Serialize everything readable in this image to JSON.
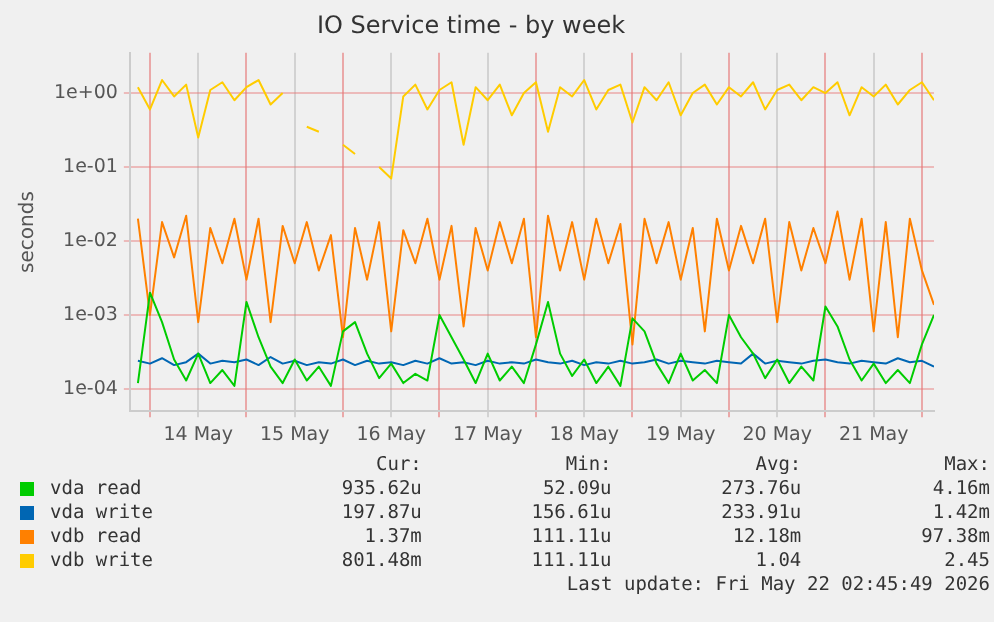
{
  "chart_data": {
    "type": "line",
    "title": "IO Service time - by week",
    "ylabel": "seconds",
    "log": "y",
    "grid": true,
    "legend": "bottom",
    "marker": "none",
    "line_style": "solid",
    "xlim": [
      "2026-05-13T19:00",
      "2026-05-22T03:00"
    ],
    "xticks": [
      {
        "value": "2026-05-14T00:00",
        "label": null
      },
      {
        "value": "2026-05-14T12:00",
        "label": "14 May"
      },
      {
        "value": "2026-05-15T00:00",
        "label": null
      },
      {
        "value": "2026-05-15T12:00",
        "label": "15 May"
      },
      {
        "value": "2026-05-16T00:00",
        "label": null
      },
      {
        "value": "2026-05-16T12:00",
        "label": "16 May"
      },
      {
        "value": "2026-05-17T00:00",
        "label": null
      },
      {
        "value": "2026-05-17T12:00",
        "label": "17 May"
      },
      {
        "value": "2026-05-18T00:00",
        "label": null
      },
      {
        "value": "2026-05-18T12:00",
        "label": "18 May"
      },
      {
        "value": "2026-05-19T00:00",
        "label": null
      },
      {
        "value": "2026-05-19T12:00",
        "label": "19 May"
      },
      {
        "value": "2026-05-20T00:00",
        "label": null
      },
      {
        "value": "2026-05-20T12:00",
        "label": "20 May"
      },
      {
        "value": "2026-05-21T00:00",
        "label": null
      },
      {
        "value": "2026-05-21T12:00",
        "label": "21 May"
      },
      {
        "value": "2026-05-22T00:00",
        "label": null
      }
    ],
    "ylim": [
      5e-05,
      3.5
    ],
    "yticks": [
      {
        "value": 0.0001,
        "label": "1e-04"
      },
      {
        "value": 0.001,
        "label": "1e-03"
      },
      {
        "value": 0.01,
        "label": "1e-02"
      },
      {
        "value": 0.1,
        "label": "1e-01"
      },
      {
        "value": 1,
        "label": "1e+00"
      }
    ],
    "x": [
      "2026-05-13T21:00",
      "2026-05-14T00:00",
      "2026-05-14T03:00",
      "2026-05-14T06:00",
      "2026-05-14T09:00",
      "2026-05-14T12:00",
      "2026-05-14T15:00",
      "2026-05-14T18:00",
      "2026-05-14T21:00",
      "2026-05-15T00:00",
      "2026-05-15T03:00",
      "2026-05-15T06:00",
      "2026-05-15T09:00",
      "2026-05-15T12:00",
      "2026-05-15T15:00",
      "2026-05-15T18:00",
      "2026-05-15T21:00",
      "2026-05-16T00:00",
      "2026-05-16T03:00",
      "2026-05-16T06:00",
      "2026-05-16T09:00",
      "2026-05-16T12:00",
      "2026-05-16T15:00",
      "2026-05-16T18:00",
      "2026-05-16T21:00",
      "2026-05-17T00:00",
      "2026-05-17T03:00",
      "2026-05-17T06:00",
      "2026-05-17T09:00",
      "2026-05-17T12:00",
      "2026-05-17T15:00",
      "2026-05-17T18:00",
      "2026-05-17T21:00",
      "2026-05-18T00:00",
      "2026-05-18T03:00",
      "2026-05-18T06:00",
      "2026-05-18T09:00",
      "2026-05-18T12:00",
      "2026-05-18T15:00",
      "2026-05-18T18:00",
      "2026-05-18T21:00",
      "2026-05-19T00:00",
      "2026-05-19T03:00",
      "2026-05-19T06:00",
      "2026-05-19T09:00",
      "2026-05-19T12:00",
      "2026-05-19T15:00",
      "2026-05-19T18:00",
      "2026-05-19T21:00",
      "2026-05-20T00:00",
      "2026-05-20T03:00",
      "2026-05-20T06:00",
      "2026-05-20T09:00",
      "2026-05-20T12:00",
      "2026-05-20T15:00",
      "2026-05-20T18:00",
      "2026-05-20T21:00",
      "2026-05-21T00:00",
      "2026-05-21T03:00",
      "2026-05-21T06:00",
      "2026-05-21T09:00",
      "2026-05-21T12:00",
      "2026-05-21T15:00",
      "2026-05-21T18:00",
      "2026-05-21T21:00",
      "2026-05-22T00:00",
      "2026-05-22T03:00"
    ],
    "series": [
      {
        "name": "vda read",
        "color": "#00cc00",
        "values": [
          0.00012,
          0.002,
          0.0008,
          0.00025,
          0.00013,
          0.0003,
          0.00012,
          0.00018,
          0.00011,
          0.0015,
          0.0005,
          0.0002,
          0.00012,
          0.00025,
          0.00013,
          0.0002,
          0.00011,
          0.0006,
          0.0008,
          0.0003,
          0.00014,
          0.00022,
          0.00012,
          0.00016,
          0.00013,
          0.001,
          0.0005,
          0.00025,
          0.00012,
          0.0003,
          0.00013,
          0.0002,
          0.00012,
          0.0004,
          0.0015,
          0.0003,
          0.00015,
          0.00025,
          0.00012,
          0.0002,
          0.00011,
          0.0009,
          0.0006,
          0.00022,
          0.00012,
          0.0003,
          0.00013,
          0.00018,
          0.00012,
          0.001,
          0.0005,
          0.0003,
          0.00014,
          0.00025,
          0.00012,
          0.0002,
          0.00013,
          0.0013,
          0.0007,
          0.00025,
          0.00013,
          0.00022,
          0.00012,
          0.00018,
          0.00012,
          0.0004,
          0.001
        ]
      },
      {
        "name": "vda write",
        "color": "#0066b3",
        "values": [
          0.00024,
          0.00022,
          0.00026,
          0.00021,
          0.00023,
          0.0003,
          0.00022,
          0.00024,
          0.00023,
          0.00025,
          0.00021,
          0.00027,
          0.00022,
          0.00024,
          0.00021,
          0.00023,
          0.00022,
          0.00025,
          0.00021,
          0.00024,
          0.00022,
          0.00023,
          0.00021,
          0.00024,
          0.00022,
          0.00026,
          0.00022,
          0.00023,
          0.00021,
          0.00024,
          0.00022,
          0.00023,
          0.00022,
          0.00025,
          0.00023,
          0.00022,
          0.00024,
          0.00021,
          0.00023,
          0.00022,
          0.00024,
          0.00022,
          0.00023,
          0.00025,
          0.00022,
          0.00024,
          0.00023,
          0.00022,
          0.00024,
          0.00023,
          0.00022,
          0.0003,
          0.00022,
          0.00024,
          0.00023,
          0.00022,
          0.00024,
          0.00025,
          0.00023,
          0.00022,
          0.00024,
          0.00023,
          0.00022,
          0.00026,
          0.00023,
          0.00024,
          0.0002
        ]
      },
      {
        "name": "vdb read",
        "color": "#ff8000",
        "values": [
          0.02,
          0.001,
          0.018,
          0.006,
          0.022,
          0.0008,
          0.015,
          0.005,
          0.02,
          0.003,
          0.02,
          0.0008,
          0.016,
          0.005,
          0.018,
          0.004,
          0.012,
          0.0005,
          0.015,
          0.003,
          0.018,
          0.0006,
          0.014,
          0.005,
          0.02,
          0.003,
          0.016,
          0.0007,
          0.015,
          0.004,
          0.018,
          0.005,
          0.02,
          0.0005,
          0.022,
          0.004,
          0.018,
          0.003,
          0.02,
          0.005,
          0.017,
          0.0004,
          0.02,
          0.005,
          0.018,
          0.003,
          0.015,
          0.0006,
          0.02,
          0.004,
          0.016,
          0.005,
          0.02,
          0.0008,
          0.018,
          0.004,
          0.015,
          0.005,
          0.025,
          0.003,
          0.02,
          0.0006,
          0.018,
          0.0005,
          0.02,
          0.004,
          0.00137
        ]
      },
      {
        "name": "vdb write",
        "color": "#ffcc00",
        "values": [
          1.2,
          0.6,
          1.5,
          0.9,
          1.3,
          0.25,
          1.1,
          1.4,
          0.8,
          1.2,
          1.5,
          0.7,
          1.0,
          null,
          0.35,
          0.3,
          null,
          0.2,
          0.15,
          null,
          0.1,
          0.07,
          0.9,
          1.3,
          0.6,
          1.1,
          1.4,
          0.2,
          1.2,
          0.8,
          1.3,
          0.5,
          1.0,
          1.4,
          0.3,
          1.2,
          0.9,
          1.5,
          0.6,
          1.1,
          1.3,
          0.4,
          1.2,
          0.8,
          1.4,
          0.5,
          1.0,
          1.3,
          0.7,
          1.2,
          0.9,
          1.4,
          0.6,
          1.1,
          1.3,
          0.8,
          1.2,
          1.0,
          1.4,
          0.5,
          1.2,
          0.9,
          1.3,
          0.7,
          1.1,
          1.4,
          0.8
        ]
      }
    ],
    "annotations": [
      "Cur:",
      "Min:",
      "Avg:",
      "Max:",
      "935.62u",
      "52.09u",
      "273.76u",
      "4.16m",
      "197.87u",
      "156.61u",
      "233.91u",
      "1.42m",
      "1.37m",
      "111.11u",
      "12.18m",
      "97.38m",
      "801.48m",
      "111.11u",
      "1.04",
      "2.45",
      "Last update: Fri May 22 02:45:49 2026"
    ]
  }
}
